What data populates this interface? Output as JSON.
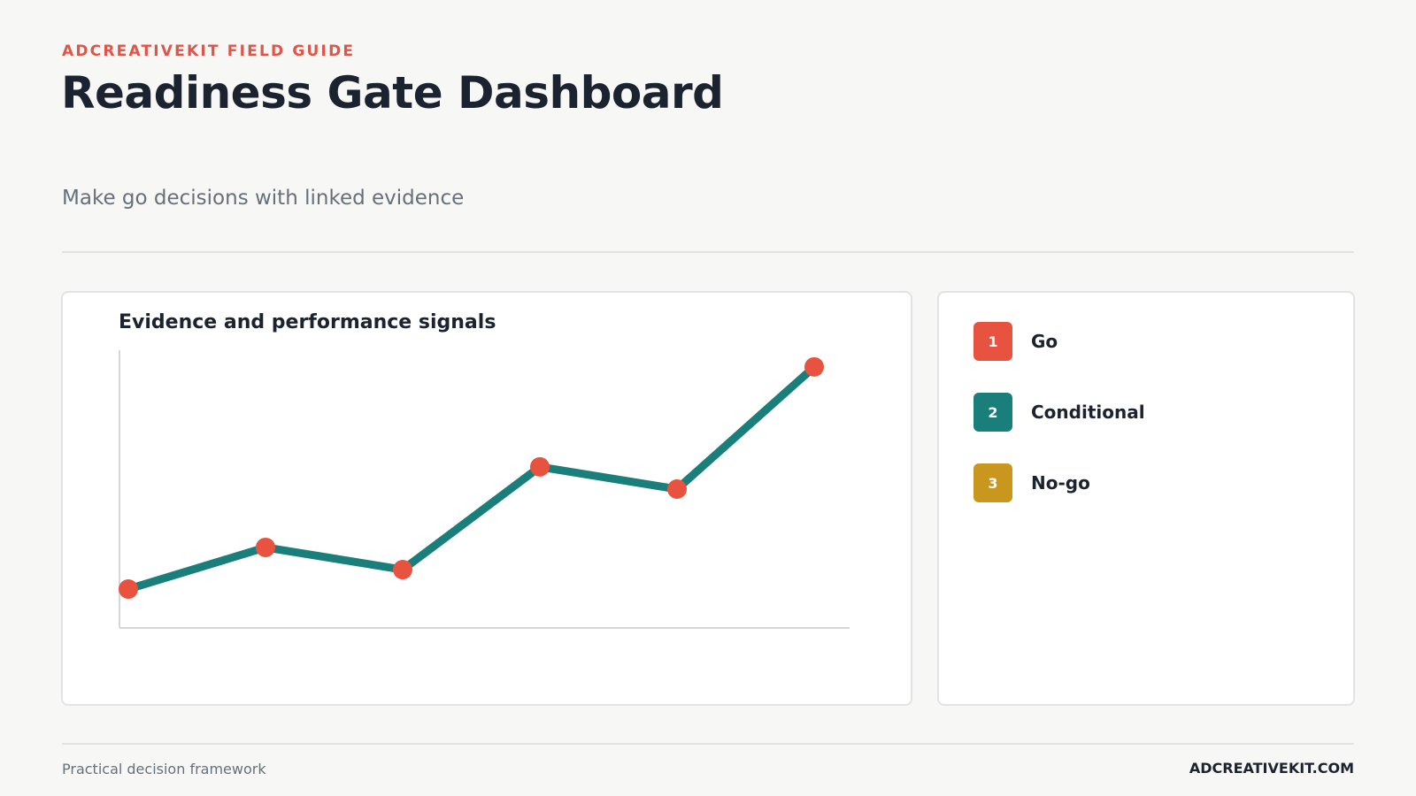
{
  "header": {
    "eyebrow": "ADCREATIVEKIT FIELD GUIDE",
    "title": "Readiness Gate Dashboard",
    "subtitle": "Make go decisions with linked evidence"
  },
  "chart_data": {
    "type": "line",
    "title": "Evidence and performance signals",
    "xlabel": "",
    "ylabel": "",
    "x": [
      1,
      2,
      3,
      4,
      5,
      6
    ],
    "values": [
      14,
      29,
      21,
      58,
      50,
      94
    ],
    "ylim": [
      0,
      100
    ],
    "grid": false,
    "line_color": "#1a7f7a",
    "marker_color": "#e8533f"
  },
  "legend": {
    "items": [
      {
        "number": "1",
        "label": "Go",
        "color": "#e8533f"
      },
      {
        "number": "2",
        "label": "Conditional",
        "color": "#1a7f7a"
      },
      {
        "number": "3",
        "label": "No-go",
        "color": "#c9961e"
      }
    ]
  },
  "footer": {
    "left": "Practical decision framework",
    "right": "ADCREATIVEKIT.COM"
  }
}
